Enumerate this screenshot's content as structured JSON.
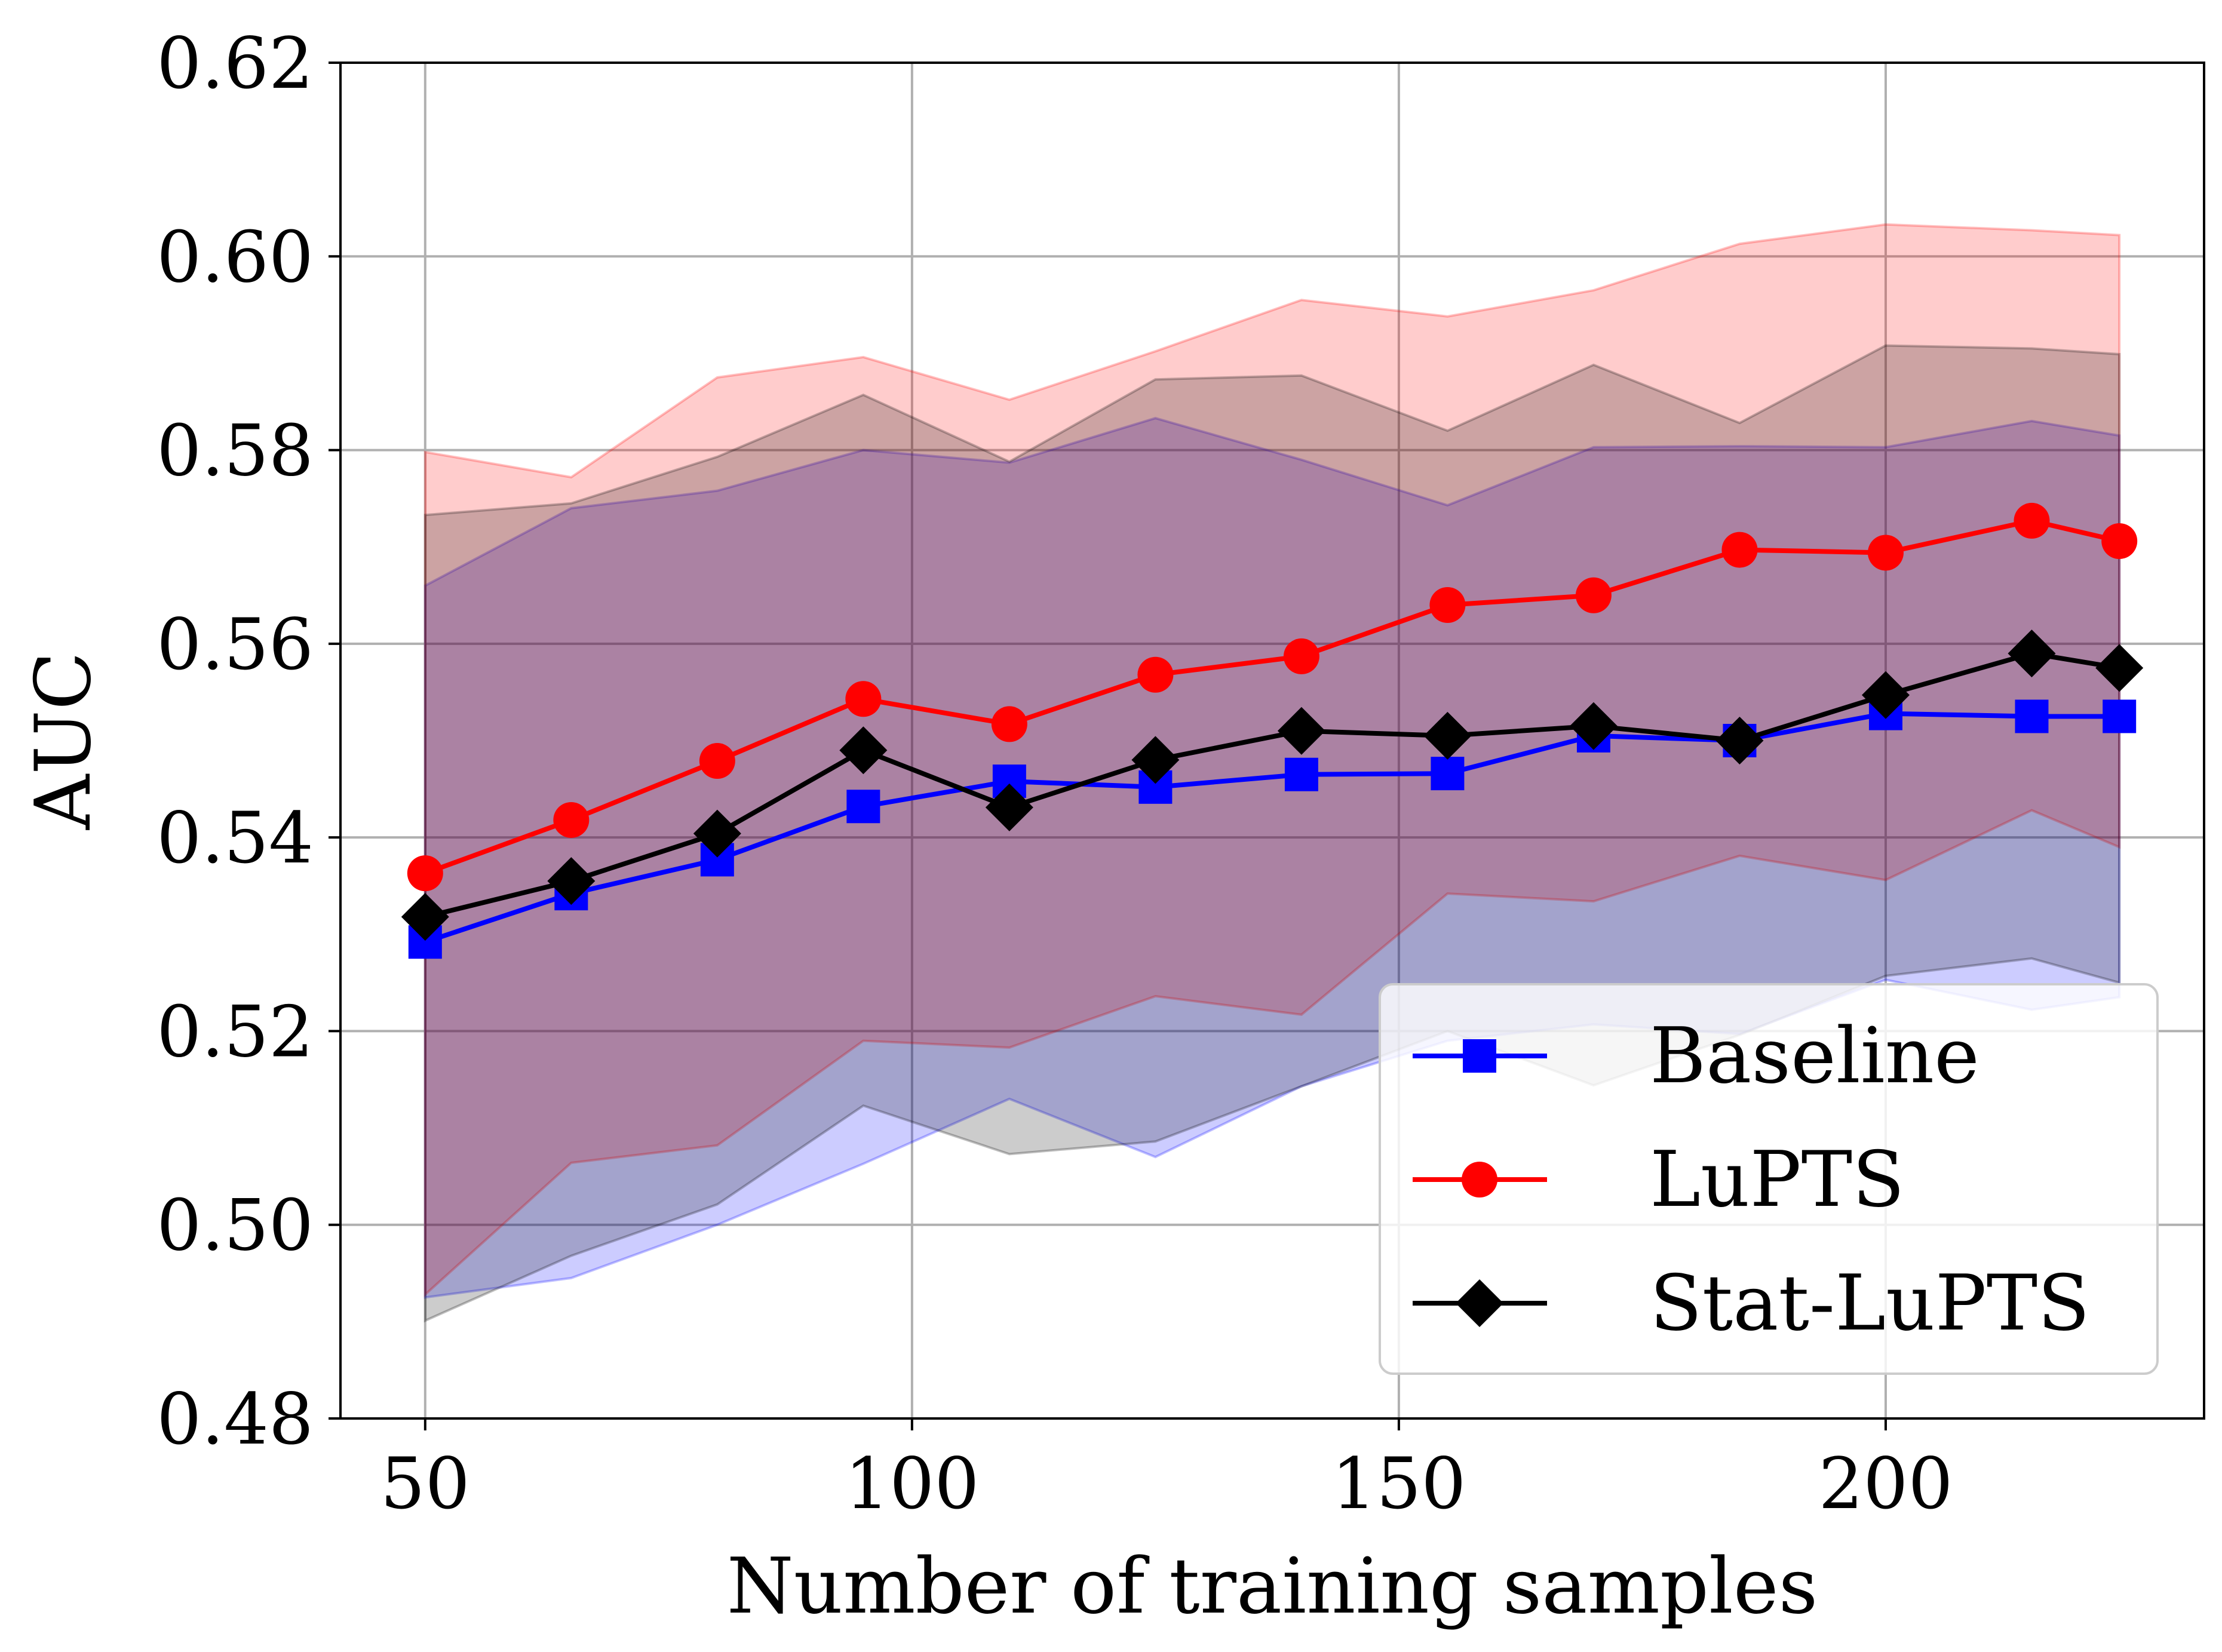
{
  "chart_data": {
    "type": "line",
    "title": "",
    "xlabel": "Number of training samples",
    "ylabel": "AUC",
    "xlim": [
      41.3,
      232.7
    ],
    "ylim": [
      0.48,
      0.62
    ],
    "grid": true,
    "legend_position": "bottom-right",
    "xticks": [
      50,
      100,
      150,
      200
    ],
    "xtick_labels": [
      "50",
      "100",
      "150",
      "200"
    ],
    "yticks": [
      0.48,
      0.5,
      0.52,
      0.54,
      0.56,
      0.58,
      0.6,
      0.62
    ],
    "ytick_labels": [
      "0.48",
      "0.50",
      "0.52",
      "0.54",
      "0.56",
      "0.58",
      "0.60",
      "0.62"
    ],
    "x": [
      50,
      65,
      80,
      95,
      110,
      125,
      140,
      155,
      170,
      185,
      200,
      215,
      224
    ],
    "series": [
      {
        "name": "Baseline",
        "color": "#0000ff",
        "marker": "square",
        "values": [
          0.5292,
          0.5342,
          0.5377,
          0.5432,
          0.5458,
          0.5452,
          0.5465,
          0.5466,
          0.5505,
          0.55,
          0.5528,
          0.5525,
          0.5525
        ],
        "band_upper": [
          0.566,
          0.574,
          0.5758,
          0.58,
          0.5787,
          0.5833,
          0.579,
          0.5743,
          0.5803,
          0.5804,
          0.5803,
          0.583,
          0.5815
        ],
        "band_lower": [
          0.4925,
          0.4945,
          0.5,
          0.5063,
          0.513,
          0.507,
          0.5143,
          0.519,
          0.5207,
          0.5197,
          0.5253,
          0.5222,
          0.5235
        ]
      },
      {
        "name": "LuPTS",
        "color": "#ff0000",
        "marker": "circle",
        "values": [
          0.5363,
          0.5418,
          0.5479,
          0.5543,
          0.5517,
          0.5568,
          0.5587,
          0.564,
          0.565,
          0.5697,
          0.5694,
          0.5727,
          0.5706
        ],
        "band_upper": [
          0.5798,
          0.5772,
          0.5875,
          0.5896,
          0.5852,
          0.5902,
          0.5955,
          0.5938,
          0.5965,
          0.6013,
          0.6033,
          0.6027,
          0.6022
        ],
        "band_lower": [
          0.4928,
          0.5064,
          0.5082,
          0.519,
          0.5183,
          0.5236,
          0.5217,
          0.5342,
          0.5334,
          0.5381,
          0.5356,
          0.5428,
          0.539
        ]
      },
      {
        "name": "Stat-LuPTS",
        "color": "#000000",
        "marker": "diamond",
        "values": [
          0.5318,
          0.5355,
          0.5404,
          0.549,
          0.5431,
          0.548,
          0.551,
          0.5505,
          0.5515,
          0.55,
          0.5547,
          0.559,
          0.5575
        ],
        "band_upper": [
          0.5733,
          0.5745,
          0.5793,
          0.5857,
          0.5788,
          0.5873,
          0.5877,
          0.582,
          0.5888,
          0.5828,
          0.5908,
          0.5905,
          0.5899
        ],
        "band_lower": [
          0.4901,
          0.4968,
          0.5021,
          0.5123,
          0.5073,
          0.5086,
          0.5143,
          0.52,
          0.5144,
          0.5196,
          0.5257,
          0.5275,
          0.525
        ]
      }
    ]
  }
}
